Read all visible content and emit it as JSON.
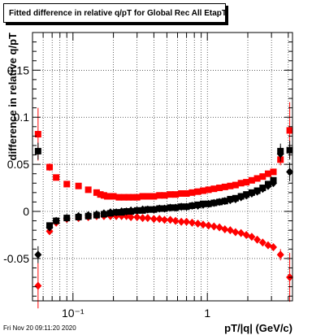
{
  "chart_data": {
    "type": "scatter",
    "title": "Fitted difference in relative q/pT for Global Rec All EtapT",
    "xlabel": "pT/|q| (GeV/c)",
    "ylabel": "difference in relative q/pT",
    "xscale": "log",
    "xlim": [
      0.05,
      4.3
    ],
    "ylim": [
      -0.095,
      0.19
    ],
    "grid": true,
    "x_tick_labels": [
      "10⁻¹",
      "1"
    ],
    "y_tick_labels": [
      "-0.05",
      "0",
      "0.05",
      "0.1",
      "0.15"
    ],
    "footer": "Fri Nov 20 09:11:20 2020",
    "series": [
      {
        "color": "#ff0000",
        "marker": "square",
        "x": [
          0.055,
          0.067,
          0.075,
          0.09,
          0.11,
          0.13,
          0.15,
          0.16,
          0.17,
          0.18,
          0.19,
          0.2,
          0.22,
          0.24,
          0.26,
          0.28,
          0.3,
          0.33,
          0.36,
          0.4,
          0.44,
          0.48,
          0.53,
          0.58,
          0.64,
          0.7,
          0.77,
          0.85,
          0.93,
          1.02,
          1.12,
          1.23,
          1.35,
          1.48,
          1.62,
          1.78,
          1.95,
          2.14,
          2.35,
          2.58,
          2.83,
          3.1,
          3.5,
          4.1
        ],
        "y": [
          0.082,
          0.047,
          0.036,
          0.029,
          0.027,
          0.023,
          0.02,
          0.018,
          0.017,
          0.016,
          0.016,
          0.016,
          0.015,
          0.015,
          0.015,
          0.015,
          0.015,
          0.016,
          0.016,
          0.016,
          0.017,
          0.017,
          0.018,
          0.018,
          0.019,
          0.019,
          0.02,
          0.021,
          0.022,
          0.023,
          0.024,
          0.025,
          0.026,
          0.027,
          0.028,
          0.03,
          0.031,
          0.033,
          0.035,
          0.037,
          0.04,
          0.042,
          0.055,
          0.086
        ],
        "yerr": [
          0.028,
          0.004,
          0.003,
          0.002,
          0.002,
          0.002,
          0.001,
          0.001,
          0.001,
          0.001,
          0.001,
          0.001,
          0.001,
          0.001,
          0.001,
          0.001,
          0.001,
          0.001,
          0.001,
          0.001,
          0.001,
          0.001,
          0.001,
          0.001,
          0.001,
          0.001,
          0.001,
          0.001,
          0.001,
          0.001,
          0.001,
          0.001,
          0.001,
          0.001,
          0.001,
          0.001,
          0.001,
          0.001,
          0.002,
          0.002,
          0.002,
          0.003,
          0.006,
          0.03
        ]
      },
      {
        "color": "#ff0000",
        "marker": "diamond",
        "x": [
          0.055,
          0.067,
          0.075,
          0.09,
          0.11,
          0.13,
          0.15,
          0.17,
          0.19,
          0.21,
          0.23,
          0.25,
          0.27,
          0.3,
          0.33,
          0.36,
          0.4,
          0.44,
          0.48,
          0.53,
          0.58,
          0.64,
          0.7,
          0.77,
          0.85,
          0.93,
          1.02,
          1.12,
          1.23,
          1.35,
          1.48,
          1.62,
          1.78,
          1.95,
          2.14,
          2.35,
          2.58,
          2.83,
          3.1,
          3.5,
          4.1
        ],
        "y": [
          -0.079,
          -0.021,
          -0.012,
          -0.008,
          -0.007,
          -0.006,
          -0.005,
          -0.005,
          -0.005,
          -0.005,
          -0.005,
          -0.005,
          -0.006,
          -0.006,
          -0.007,
          -0.007,
          -0.008,
          -0.008,
          -0.009,
          -0.009,
          -0.01,
          -0.011,
          -0.011,
          -0.012,
          -0.013,
          -0.014,
          -0.015,
          -0.016,
          -0.017,
          -0.019,
          -0.02,
          -0.022,
          -0.023,
          -0.025,
          -0.027,
          -0.03,
          -0.033,
          -0.036,
          -0.038,
          -0.046,
          -0.07
        ],
        "yerr": [
          0.024,
          0.004,
          0.002,
          0.001,
          0.001,
          0.001,
          0.001,
          0.001,
          0.001,
          0.001,
          0.001,
          0.001,
          0.001,
          0.001,
          0.001,
          0.001,
          0.001,
          0.001,
          0.001,
          0.001,
          0.001,
          0.001,
          0.001,
          0.001,
          0.001,
          0.001,
          0.001,
          0.001,
          0.001,
          0.001,
          0.001,
          0.001,
          0.001,
          0.001,
          0.001,
          0.002,
          0.002,
          0.002,
          0.003,
          0.006,
          0.026
        ]
      },
      {
        "color": "#000000",
        "marker": "square",
        "x": [
          0.055,
          0.067,
          0.075,
          0.09,
          0.11,
          0.13,
          0.15,
          0.17,
          0.19,
          0.21,
          0.23,
          0.25,
          0.27,
          0.3,
          0.33,
          0.36,
          0.4,
          0.44,
          0.48,
          0.53,
          0.58,
          0.64,
          0.7,
          0.77,
          0.85,
          0.93,
          1.02,
          1.12,
          1.23,
          1.35,
          1.48,
          1.62,
          1.78,
          1.95,
          2.14,
          2.35,
          2.58,
          2.83,
          3.1,
          3.5,
          4.1
        ],
        "y": [
          0.064,
          -0.015,
          -0.01,
          -0.007,
          -0.006,
          -0.005,
          -0.004,
          -0.003,
          -0.002,
          -0.001,
          -0.001,
          0.0,
          0.0,
          0.001,
          0.001,
          0.002,
          0.002,
          0.003,
          0.003,
          0.004,
          0.004,
          0.005,
          0.005,
          0.006,
          0.007,
          0.008,
          0.008,
          0.009,
          0.01,
          0.011,
          0.013,
          0.014,
          0.016,
          0.018,
          0.02,
          0.022,
          0.025,
          0.029,
          0.033,
          0.064,
          0.065
        ],
        "yerr": [
          0.009,
          0.003,
          0.002,
          0.001,
          0.001,
          0.001,
          0.001,
          0.001,
          0.001,
          0.001,
          0.001,
          0.001,
          0.001,
          0.001,
          0.001,
          0.001,
          0.001,
          0.001,
          0.001,
          0.001,
          0.001,
          0.001,
          0.001,
          0.001,
          0.001,
          0.001,
          0.001,
          0.001,
          0.001,
          0.001,
          0.001,
          0.001,
          0.001,
          0.001,
          0.001,
          0.001,
          0.002,
          0.002,
          0.003,
          0.008,
          0.01
        ]
      },
      {
        "color": "#000000",
        "marker": "diamond",
        "x": [
          0.055,
          0.067,
          0.075,
          0.09,
          0.11,
          0.13,
          0.15,
          0.17,
          0.19,
          0.21,
          0.23,
          0.25,
          0.27,
          0.3,
          0.33,
          0.36,
          0.4,
          0.44,
          0.48,
          0.53,
          0.58,
          0.64,
          0.7,
          0.77,
          0.85,
          0.93,
          1.02,
          1.12,
          1.23,
          1.35,
          1.48,
          1.62,
          1.78,
          1.95,
          2.14,
          2.35,
          2.58,
          2.83,
          3.1,
          3.5,
          4.1
        ],
        "y": [
          -0.046,
          -0.017,
          -0.01,
          -0.007,
          -0.005,
          -0.004,
          -0.003,
          -0.002,
          -0.001,
          -0.001,
          0.0,
          0.0,
          0.001,
          0.001,
          0.002,
          0.002,
          0.002,
          0.003,
          0.003,
          0.004,
          0.004,
          0.005,
          0.005,
          0.006,
          0.006,
          0.007,
          0.008,
          0.009,
          0.01,
          0.011,
          0.012,
          0.013,
          0.015,
          0.017,
          0.019,
          0.021,
          0.024,
          0.027,
          0.03,
          0.061,
          0.042
        ],
        "yerr": [
          0.009,
          0.003,
          0.002,
          0.001,
          0.001,
          0.001,
          0.001,
          0.001,
          0.001,
          0.001,
          0.001,
          0.001,
          0.001,
          0.001,
          0.001,
          0.001,
          0.001,
          0.001,
          0.001,
          0.001,
          0.001,
          0.001,
          0.001,
          0.001,
          0.001,
          0.001,
          0.001,
          0.001,
          0.001,
          0.001,
          0.001,
          0.001,
          0.001,
          0.001,
          0.001,
          0.001,
          0.002,
          0.002,
          0.003,
          0.008,
          0.01
        ]
      }
    ]
  }
}
